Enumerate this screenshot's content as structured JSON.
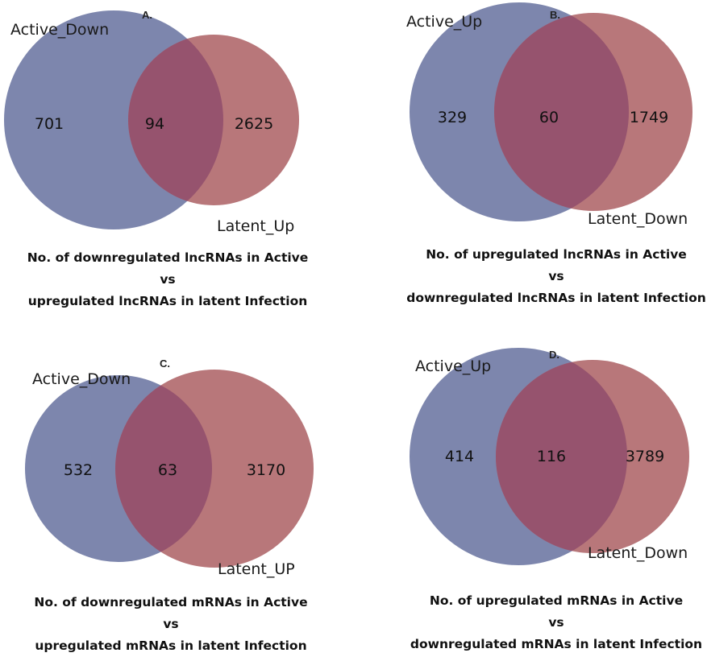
{
  "colors": {
    "set_left": "#7d86ad",
    "set_right": "#b8777a",
    "overlap": "#96536e"
  },
  "panels": [
    {
      "letter": "A.",
      "left_label": "Active_Down",
      "right_label": "Latent_Up",
      "left_only": "701",
      "both": "94",
      "right_only": "2625",
      "caption": [
        "No. of downregulated lncRNAs in Active",
        "vs",
        "upregulated lncRNAs in latent Infection"
      ]
    },
    {
      "letter": "B.",
      "left_label": "Active_Up",
      "right_label": "Latent_Down",
      "left_only": "329",
      "both": "60",
      "right_only": "1749",
      "caption": [
        "No. of upregulated lncRNAs in Active",
        "vs",
        "downregulated lncRNAs in latent Infection"
      ]
    },
    {
      "letter": "C.",
      "left_label": "Active_Down",
      "right_label": "Latent_UP",
      "left_only": "532",
      "both": "63",
      "right_only": "3170",
      "caption": [
        "No. of downregulated mRNAs in Active",
        "vs",
        "upregulated mRNAs in latent Infection"
      ]
    },
    {
      "letter": "D.",
      "left_label": "Active_Up",
      "right_label": "Latent_Down",
      "left_only": "414",
      "both": "116",
      "right_only": "3789",
      "caption": [
        "No. of upregulated mRNAs in Active",
        "vs",
        "downregulated mRNAs in latent Infection"
      ]
    }
  ]
}
